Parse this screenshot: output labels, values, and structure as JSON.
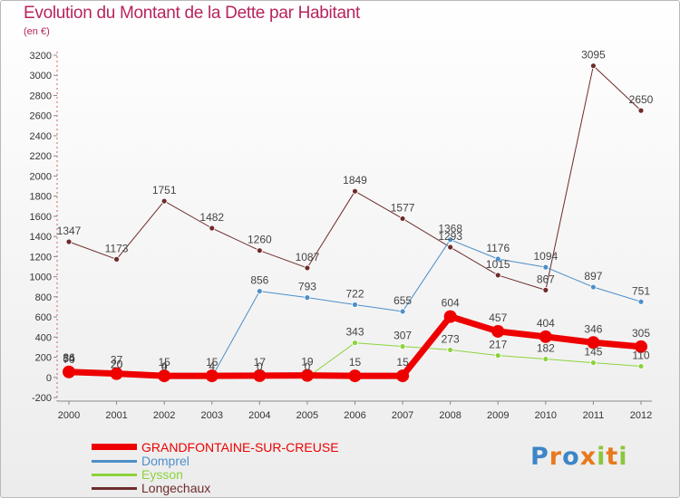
{
  "chart_data": {
    "type": "line",
    "title": "Evolution du Montant de la Dette par Habitant",
    "subtitle": "(en €)",
    "xlabel": "",
    "ylabel": "",
    "x": [
      "2000",
      "2001",
      "2002",
      "2003",
      "2004",
      "2005",
      "2006",
      "2007",
      "2008",
      "2009",
      "2010",
      "2011",
      "2012"
    ],
    "ylim": [
      -200,
      3200
    ],
    "yticks": [
      -200,
      0,
      200,
      400,
      600,
      800,
      1000,
      1200,
      1400,
      1600,
      1800,
      2000,
      2200,
      2400,
      2600,
      2800,
      3000,
      3200
    ],
    "grid": false,
    "legend_position": "bottom-left",
    "series": [
      {
        "name": "Longechaux",
        "color": "#6e2b2b",
        "width": 1,
        "values": [
          1347,
          1173,
          1751,
          1482,
          1260,
          1087,
          1849,
          1577,
          1293,
          1015,
          867,
          3095,
          2650
        ]
      },
      {
        "name": "Dompreł",
        "color": "#4d8fc9",
        "width": 1,
        "values": [
          70,
          20,
          0,
          4,
          856,
          793,
          722,
          655,
          1368,
          1176,
          1094,
          897,
          751
        ]
      },
      {
        "name": "Eysson",
        "color": "#8cd33b",
        "width": 1,
        "values": [
          86,
          20,
          4,
          4,
          0,
          0,
          343,
          307,
          273,
          217,
          182,
          145,
          110
        ]
      },
      {
        "name": "GRANDFONTAINE-SUR-CREUSE",
        "color": "#ee0000",
        "width": 7,
        "values": [
          54,
          37,
          15,
          15,
          17,
          19,
          15,
          15,
          604,
          457,
          404,
          346,
          305
        ]
      }
    ]
  },
  "legend": {
    "items": [
      {
        "label": "GRANDFONTAINE-SUR-CREUSE",
        "color": "#ee0000",
        "thick": true
      },
      {
        "label": "Domprel",
        "color": "#4d8fc9",
        "thick": false
      },
      {
        "label": "Eysson",
        "color": "#8cd33b",
        "thick": false
      },
      {
        "label": "Longechaux",
        "color": "#6e2b2b",
        "thick": false
      }
    ]
  },
  "logo": {
    "letters": [
      "P",
      "r",
      "o",
      "x",
      "i",
      "t",
      "i"
    ],
    "colors": [
      "#3d86c6",
      "#e8791d",
      "#3d86c6",
      "#e8791d",
      "#8cc63f",
      "#e8791d",
      "#8cc63f"
    ]
  }
}
